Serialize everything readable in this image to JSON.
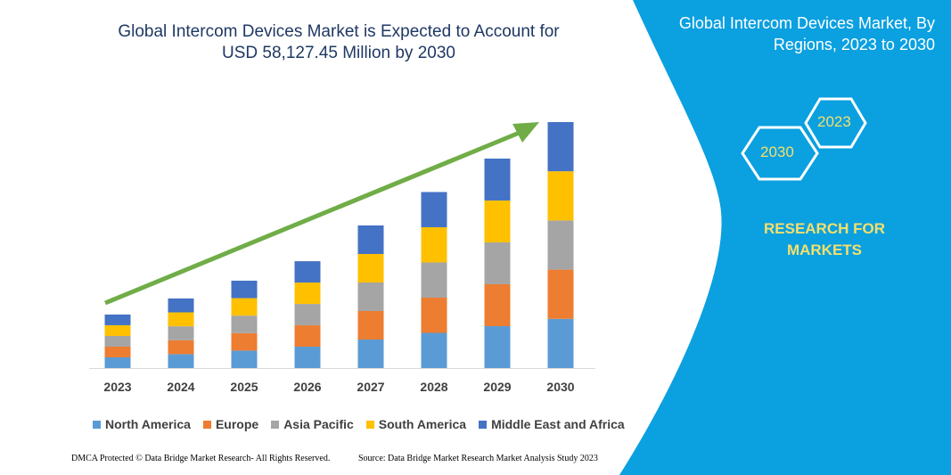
{
  "title_line1": "Global Intercom Devices Market is Expected to Account for",
  "title_line2": "USD 58,127.45 Million by 2030",
  "right_panel": {
    "title": "Global Intercom Devices Market, By Regions, 2023 to 2030",
    "hex_start": "2023",
    "hex_end": "2030",
    "tagline": "RESEARCH FOR MARKETS",
    "background_color": "#0ba0e0"
  },
  "footer": {
    "left": "DMCA Protected © Data Bridge Market Research-  All Rights Reserved.",
    "right": "Source: Data Bridge Market Research Market Analysis Study 2023"
  },
  "chart_data": {
    "type": "bar",
    "stacked": true,
    "title": "Global Intercom Devices Market is Expected to Account for USD 58,127.45 Million by 2030",
    "xlabel": "",
    "ylabel": "",
    "y_axis_shown": false,
    "grid": false,
    "legend_position": "bottom",
    "trend_arrow": true,
    "trend_arrow_color": "#70ad47",
    "categories": [
      "2023",
      "2024",
      "2025",
      "2026",
      "2027",
      "2028",
      "2029",
      "2030"
    ],
    "series": [
      {
        "name": "North America",
        "color": "#5b9bd5",
        "values": [
          2530,
          3290,
          4130,
          5050,
          6740,
          8320,
          9900,
          11625
        ]
      },
      {
        "name": "Europe",
        "color": "#ed7d31",
        "values": [
          2530,
          3290,
          4130,
          5050,
          6740,
          8320,
          9900,
          11625
        ]
      },
      {
        "name": "Asia Pacific",
        "color": "#a5a5a5",
        "values": [
          2530,
          3290,
          4130,
          5050,
          6740,
          8320,
          9900,
          11625
        ]
      },
      {
        "name": "South America",
        "color": "#ffc000",
        "values": [
          2530,
          3290,
          4130,
          5050,
          6740,
          8320,
          9900,
          11625
        ]
      },
      {
        "name": "Middle East and Africa",
        "color": "#4472c4",
        "values": [
          2530,
          3290,
          4130,
          5050,
          6740,
          8320,
          9900,
          11625
        ]
      }
    ]
  }
}
